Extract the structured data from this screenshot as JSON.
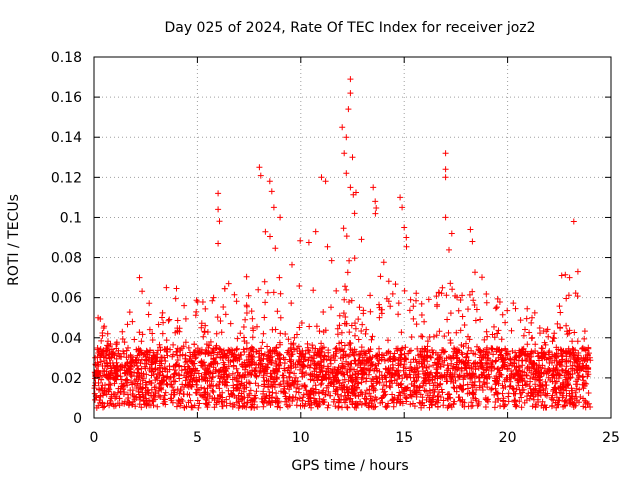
{
  "chart_data": {
    "type": "scatter",
    "title": "Day 025 of 2024, Rate Of TEC Index for receiver joz2",
    "xlabel": "GPS time / hours",
    "ylabel": "ROTI / TECUs",
    "xlim": [
      0,
      25
    ],
    "ylim": [
      0,
      0.18
    ],
    "xticks": [
      "0",
      "5",
      "10",
      "15",
      "20",
      "25"
    ],
    "yticks": [
      "0",
      "0.02",
      "0.04",
      "0.06",
      "0.08",
      "0.1",
      "0.12",
      "0.14",
      "0.16",
      "0.18"
    ],
    "grid": true,
    "marker": "+",
    "color": "#ff0000",
    "series": [
      {
        "name": "ROTI",
        "description": "Dense cloud of ROTI samples from 0 to 24 h; baseline mostly 0.005-0.035 TECU, with sparse peaks up to ~0.17 TECU",
        "envelope": {
          "x": [
            0,
            0.3,
            1,
            2.2,
            3,
            4,
            5,
            6,
            6.5,
            7,
            8,
            8.6,
            9.3,
            10.3,
            11,
            11.5,
            12,
            12.4,
            13,
            13.5,
            14.5,
            15,
            16,
            17,
            17.5,
            18.2,
            19,
            20,
            21,
            22,
            23,
            23.3,
            24
          ],
          "y": [
            0.02,
            0.05,
            0.035,
            0.07,
            0.05,
            0.065,
            0.06,
            0.112,
            0.07,
            0.06,
            0.125,
            0.118,
            0.11,
            0.1,
            0.12,
            0.11,
            0.145,
            0.17,
            0.1,
            0.115,
            0.1,
            0.11,
            0.07,
            0.132,
            0.07,
            0.095,
            0.09,
            0.06,
            0.055,
            0.05,
            0.098,
            0.072,
            0.03
          ]
        },
        "highlights": [
          {
            "x": 0.2,
            "y": 0.05
          },
          {
            "x": 2.2,
            "y": 0.07
          },
          {
            "x": 3.5,
            "y": 0.065
          },
          {
            "x": 6.0,
            "y": 0.112
          },
          {
            "x": 6.0,
            "y": 0.104
          },
          {
            "x": 6.0,
            "y": 0.087
          },
          {
            "x": 8.0,
            "y": 0.125
          },
          {
            "x": 8.5,
            "y": 0.118
          },
          {
            "x": 8.6,
            "y": 0.113
          },
          {
            "x": 8.7,
            "y": 0.105
          },
          {
            "x": 9.0,
            "y": 0.1
          },
          {
            "x": 11.0,
            "y": 0.12
          },
          {
            "x": 11.2,
            "y": 0.118
          },
          {
            "x": 12.0,
            "y": 0.145
          },
          {
            "x": 12.2,
            "y": 0.14
          },
          {
            "x": 12.1,
            "y": 0.132
          },
          {
            "x": 12.4,
            "y": 0.169
          },
          {
            "x": 12.4,
            "y": 0.162
          },
          {
            "x": 12.3,
            "y": 0.154
          },
          {
            "x": 12.5,
            "y": 0.13
          },
          {
            "x": 12.2,
            "y": 0.122
          },
          {
            "x": 12.4,
            "y": 0.115
          },
          {
            "x": 12.6,
            "y": 0.102
          },
          {
            "x": 13.5,
            "y": 0.115
          },
          {
            "x": 13.6,
            "y": 0.108
          },
          {
            "x": 14.8,
            "y": 0.11
          },
          {
            "x": 14.9,
            "y": 0.105
          },
          {
            "x": 15.0,
            "y": 0.095
          },
          {
            "x": 15.1,
            "y": 0.09
          },
          {
            "x": 17.0,
            "y": 0.132
          },
          {
            "x": 17.0,
            "y": 0.124
          },
          {
            "x": 17.0,
            "y": 0.12
          },
          {
            "x": 17.0,
            "y": 0.1
          },
          {
            "x": 17.3,
            "y": 0.092
          },
          {
            "x": 18.2,
            "y": 0.094
          },
          {
            "x": 18.3,
            "y": 0.088
          },
          {
            "x": 23.2,
            "y": 0.098
          },
          {
            "x": 23.4,
            "y": 0.073
          },
          {
            "x": 23.0,
            "y": 0.07
          }
        ]
      }
    ]
  }
}
